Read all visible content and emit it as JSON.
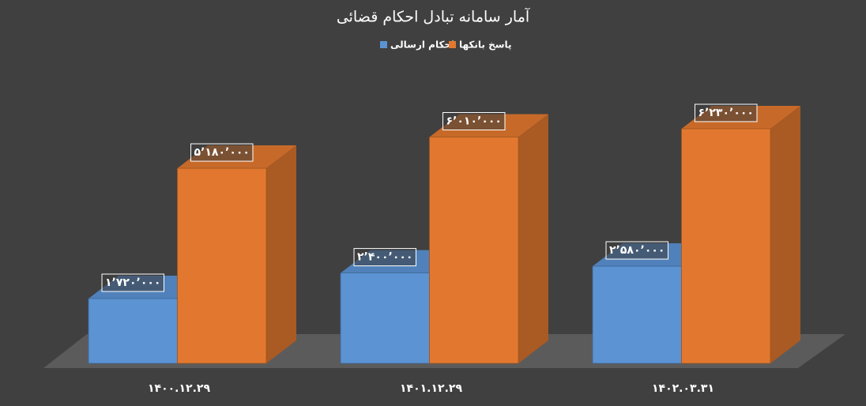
{
  "chart_data": {
    "type": "bar3d",
    "title": "آمار سامانه تبادل احکام قضائی",
    "categories": [
      "۱۴۰۰.۱۲.۲۹",
      "۱۴۰۱.۱۲.۲۹",
      "۱۴۰۲.۰۳.۳۱"
    ],
    "series": [
      {
        "name": "احکام ارسالی",
        "color": "#5b93d3",
        "values": [
          1720000,
          2400000,
          2580000
        ],
        "value_labels": [
          "۱٬۷۲۰٬۰۰۰",
          "۲٬۴۰۰٬۰۰۰",
          "۲٬۵۸۰٬۰۰۰"
        ]
      },
      {
        "name": "پاسخ بانکها",
        "color": "#e2782f",
        "values": [
          5180000,
          6010000,
          6230000
        ],
        "value_labels": [
          "۵٬۱۸۰٬۰۰۰",
          "۶٬۰۱۰٬۰۰۰",
          "۶٬۲۳۰٬۰۰۰"
        ]
      }
    ],
    "legend": "top",
    "grid": false
  }
}
